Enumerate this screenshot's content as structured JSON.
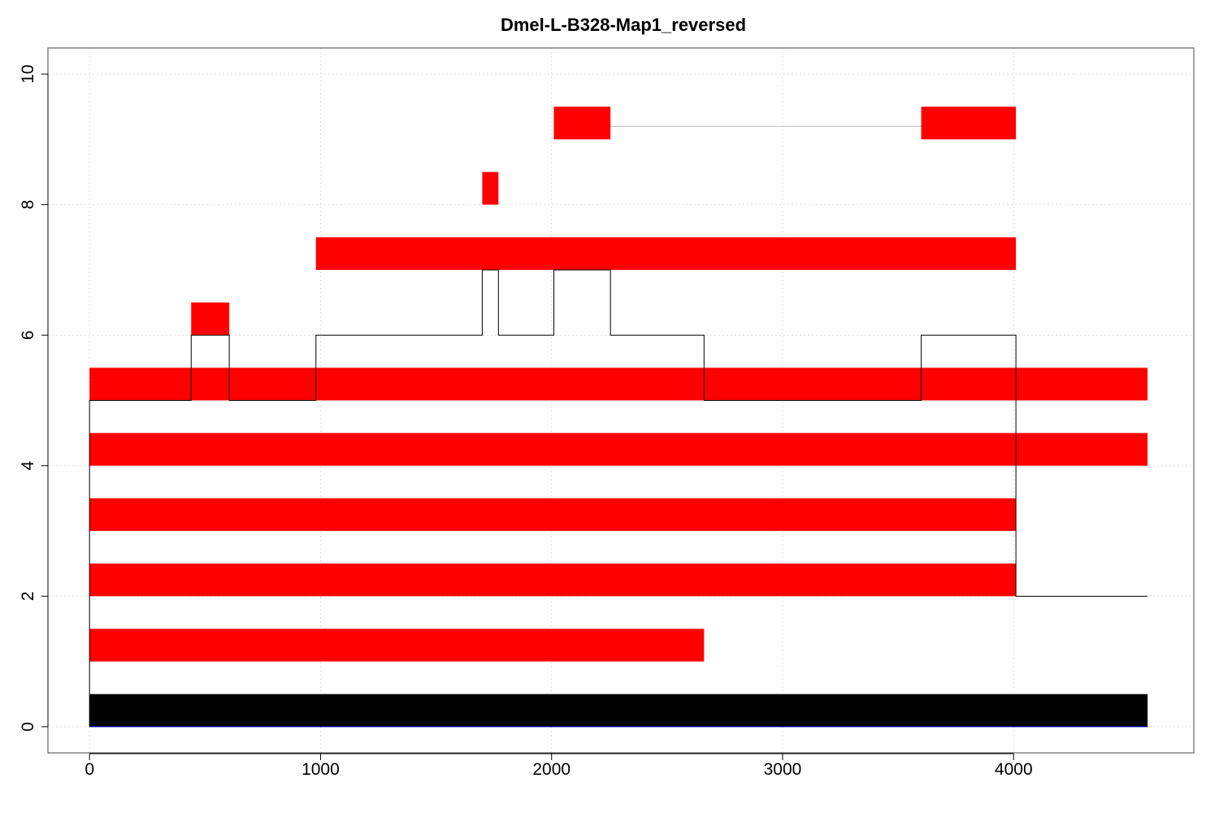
{
  "chart_data": {
    "type": "bar",
    "title": "Dmel-L-B328-Map1_reversed",
    "xlabel": "",
    "ylabel": "",
    "xlim": [
      -180,
      4780
    ],
    "ylim": [
      -0.4,
      10.4
    ],
    "x_ticks": [
      0,
      1000,
      2000,
      3000,
      4000
    ],
    "y_ticks": [
      0,
      2,
      4,
      6,
      8,
      10
    ],
    "grid": true,
    "colors": {
      "segment": "#ff0000",
      "reference": "#000000",
      "coverage_line": "#000000",
      "connector": "#bbbbbb",
      "grid": "#dddddd"
    },
    "reference_bar": {
      "x0": 0,
      "x1": 4580,
      "y0": 0,
      "y1": 0.5
    },
    "segments": [
      {
        "row": 1,
        "x0": 0,
        "x1": 2660,
        "y0": 1,
        "y1": 1.5
      },
      {
        "row": 2,
        "x0": 0,
        "x1": 4010,
        "y0": 2,
        "y1": 2.5
      },
      {
        "row": 3,
        "x0": 0,
        "x1": 4010,
        "y0": 3,
        "y1": 3.5
      },
      {
        "row": 4,
        "x0": 0,
        "x1": 4580,
        "y0": 4,
        "y1": 4.5
      },
      {
        "row": 5,
        "x0": 0,
        "x1": 4580,
        "y0": 5,
        "y1": 5.5
      },
      {
        "row": 6,
        "x0": 440,
        "x1": 605,
        "y0": 6,
        "y1": 6.5
      },
      {
        "row": 7,
        "x0": 980,
        "x1": 4010,
        "y0": 7,
        "y1": 7.5
      },
      {
        "row": 8,
        "x0": 1700,
        "x1": 1770,
        "y0": 8,
        "y1": 8.5
      },
      {
        "row": 9,
        "x0": 2010,
        "x1": 2255,
        "y0": 9,
        "y1": 9.5
      },
      {
        "row": 9,
        "x0": 3600,
        "x1": 4010,
        "y0": 9,
        "y1": 9.5
      }
    ],
    "connectors": [
      {
        "x0": 2255,
        "x1": 3600,
        "y": 9.2
      }
    ],
    "coverage_step": {
      "x": [
        0,
        0,
        440,
        440,
        605,
        605,
        980,
        980,
        1700,
        1700,
        1770,
        1770,
        2010,
        2010,
        2255,
        2255,
        2660,
        2660,
        3600,
        3600,
        4010,
        4010,
        4580
      ],
      "y": [
        0,
        5,
        5,
        6,
        6,
        5,
        5,
        6,
        6,
        7,
        7,
        6,
        6,
        7,
        7,
        6,
        6,
        5,
        5,
        6,
        6,
        2,
        2
      ]
    }
  }
}
